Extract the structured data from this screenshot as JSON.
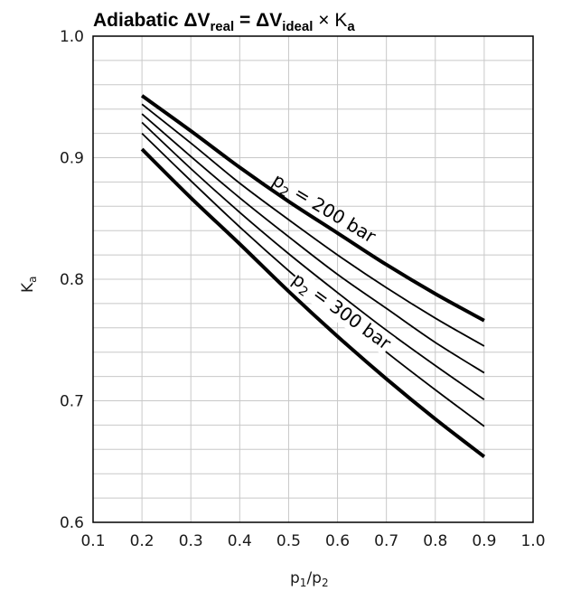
{
  "chart_data": {
    "type": "line",
    "title": {
      "prefix": "Adiabatic ",
      "delta1": "ΔV",
      "sub1": "real",
      "mid": " = ",
      "delta2": "ΔV",
      "sub2": "ideal",
      "times": " × K",
      "sub3": "a"
    },
    "xlabel": {
      "p": "p",
      "sub1": "1",
      "slash": "/p",
      "sub2": "2"
    },
    "ylabel": {
      "k": "K",
      "sub": "a"
    },
    "xlim": [
      0.1,
      1.0
    ],
    "ylim": [
      0.6,
      1.0
    ],
    "xticks": [
      "0.1",
      "0.2",
      "0.3",
      "0.4",
      "0.5",
      "0.6",
      "0.7",
      "0.8",
      "0.9",
      "1.0"
    ],
    "yticks": [
      "0.6",
      "0.7",
      "0.8",
      "0.9",
      "1.0"
    ],
    "grid": true,
    "x": [
      0.2,
      0.3,
      0.4,
      0.5,
      0.6,
      0.7,
      0.8,
      0.9
    ],
    "series": [
      {
        "name": "p2 = 200 bar",
        "bold": true,
        "values": [
          0.951,
          0.922,
          0.892,
          0.864,
          0.838,
          0.812,
          0.788,
          0.766
        ]
      },
      {
        "name": "",
        "bold": false,
        "values": [
          0.944,
          0.912,
          0.879,
          0.849,
          0.82,
          0.793,
          0.768,
          0.745
        ]
      },
      {
        "name": "",
        "bold": false,
        "values": [
          0.936,
          0.901,
          0.867,
          0.835,
          0.804,
          0.776,
          0.748,
          0.723
        ]
      },
      {
        "name": "",
        "bold": false,
        "values": [
          0.929,
          0.891,
          0.855,
          0.821,
          0.789,
          0.758,
          0.729,
          0.701
        ]
      },
      {
        "name": "",
        "bold": false,
        "values": [
          0.92,
          0.881,
          0.843,
          0.807,
          0.773,
          0.74,
          0.709,
          0.679
        ]
      },
      {
        "name": "p2 = 300 bar",
        "bold": true,
        "values": [
          0.907,
          0.867,
          0.829,
          0.79,
          0.753,
          0.718,
          0.685,
          0.654
        ]
      }
    ],
    "labels": {
      "top": {
        "p": "p",
        "sub": "2",
        "rest": " = 200 bar"
      },
      "bottom": {
        "p": "p",
        "sub": "2",
        "rest": " = 300 bar"
      }
    }
  }
}
